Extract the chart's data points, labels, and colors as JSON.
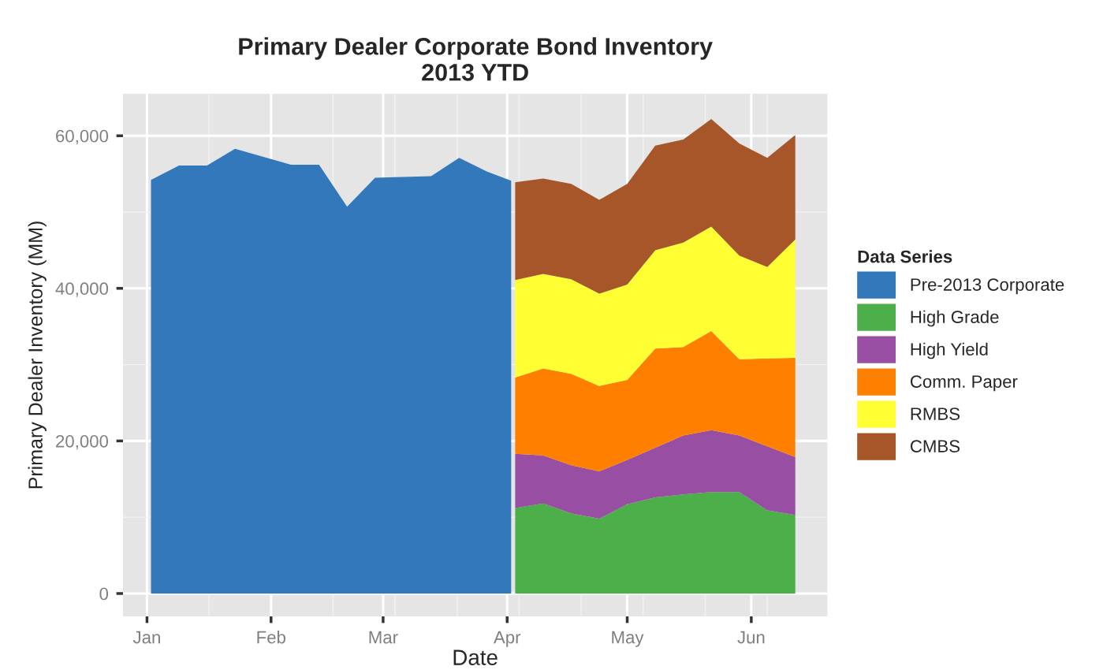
{
  "chart_data": {
    "type": "area",
    "stacked": true,
    "title": "Primary Dealer Corporate Bond Inventory\n2013 YTD",
    "xlabel": "Date",
    "ylabel": "Primary Dealer Inventory (MM)",
    "legend_title": "Data Series",
    "legend": "right",
    "grid": true,
    "xlim": [
      "2012-12-26",
      "2013-06-20"
    ],
    "xticks": [
      {
        "value": "2013-01-01",
        "label": "Jan"
      },
      {
        "value": "2013-02-01",
        "label": "Feb"
      },
      {
        "value": "2013-03-01",
        "label": "Mar"
      },
      {
        "value": "2013-04-01",
        "label": "Apr"
      },
      {
        "value": "2013-05-01",
        "label": "May"
      },
      {
        "value": "2013-06-01",
        "label": "Jun"
      }
    ],
    "ylim": [
      -3000,
      65500
    ],
    "yticks": [
      {
        "value": 0,
        "label": "0"
      },
      {
        "value": 20000,
        "label": "20,000"
      },
      {
        "value": 40000,
        "label": "40,000"
      },
      {
        "value": 60000,
        "label": "60,000"
      }
    ],
    "x": [
      "2013-01-02",
      "2013-01-09",
      "2013-01-16",
      "2013-01-23",
      "2013-02-06",
      "2013-02-13",
      "2013-02-20",
      "2013-02-27",
      "2013-03-06",
      "2013-03-13",
      "2013-03-20",
      "2013-03-27",
      "2013-04-02",
      "2013-04-03",
      "2013-04-10",
      "2013-04-17",
      "2013-04-24",
      "2013-05-01",
      "2013-05-08",
      "2013-05-15",
      "2013-05-22",
      "2013-05-29",
      "2013-06-05",
      "2013-06-12"
    ],
    "series": [
      {
        "name": "Pre-2013 Corporate",
        "color": "#3278bb",
        "values": [
          54200,
          56100,
          56100,
          58300,
          56200,
          56200,
          50700,
          54500,
          54600,
          54700,
          57100,
          55300,
          54100,
          null,
          null,
          null,
          null,
          null,
          null,
          null,
          null,
          null,
          null,
          null
        ]
      },
      {
        "name": "High Grade",
        "color": "#4daf4a",
        "values": [
          null,
          null,
          null,
          null,
          null,
          null,
          null,
          null,
          null,
          null,
          null,
          null,
          null,
          11200,
          11800,
          10500,
          9800,
          11700,
          12600,
          13000,
          13300,
          13300,
          10900,
          10300
        ]
      },
      {
        "name": "High Yield",
        "color": "#984ea3",
        "values": [
          null,
          null,
          null,
          null,
          null,
          null,
          null,
          null,
          null,
          null,
          null,
          null,
          null,
          7100,
          6300,
          6300,
          6200,
          5800,
          6500,
          7700,
          8100,
          7400,
          8400,
          7600
        ]
      },
      {
        "name": "Comm. Paper",
        "color": "#ff7f00",
        "values": [
          null,
          null,
          null,
          null,
          null,
          null,
          null,
          null,
          null,
          null,
          null,
          null,
          null,
          10000,
          11400,
          12000,
          11200,
          10500,
          13000,
          11600,
          13000,
          10000,
          11500,
          13000
        ]
      },
      {
        "name": "RMBS",
        "color": "#ffff33",
        "values": [
          null,
          null,
          null,
          null,
          null,
          null,
          null,
          null,
          null,
          null,
          null,
          null,
          null,
          12800,
          12400,
          12400,
          12100,
          12500,
          12900,
          13700,
          13700,
          13600,
          12000,
          15500
        ]
      },
      {
        "name": "CMBS",
        "color": "#a65628",
        "values": [
          null,
          null,
          null,
          null,
          null,
          null,
          null,
          null,
          null,
          null,
          null,
          null,
          null,
          12800,
          12500,
          12500,
          12300,
          13200,
          13700,
          13500,
          14100,
          14700,
          14300,
          13700
        ]
      }
    ]
  }
}
